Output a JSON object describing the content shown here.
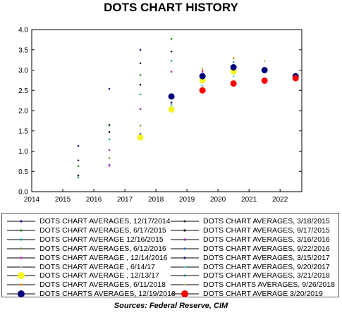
{
  "title": "DOTS CHART HISTORY",
  "source": "Sources:  Federal Reserve, CIM",
  "chart_data": {
    "type": "scatter",
    "title": "DOTS CHART HISTORY",
    "xlabel": "",
    "ylabel": "",
    "xlim": [
      2014,
      2022.7
    ],
    "ylim": [
      0,
      4
    ],
    "x_ticks": [
      "2014",
      "2015",
      "2016",
      "2017",
      "2018",
      "2019",
      "2020",
      "2021",
      "2022"
    ],
    "y_ticks": [
      "0.0",
      "0.5",
      "1.0",
      "1.5",
      "2.0",
      "2.5",
      "3.0",
      "3.5",
      "4.0"
    ],
    "grid": false,
    "legend_position": "bottom",
    "series": [
      {
        "name": "DOTS CHART AVERAGES, 12/17/2014",
        "color": "#1a1a8c",
        "marker": "small",
        "points": [
          [
            2015.5,
            1.13
          ],
          [
            2016.5,
            2.54
          ],
          [
            2017.5,
            3.5
          ]
        ]
      },
      {
        "name": "DOTS CHART AVERAGES, 3/18/2015",
        "color": "#333333",
        "marker": "small",
        "points": [
          [
            2015.5,
            0.77
          ],
          [
            2016.5,
            1.65
          ],
          [
            2017.5,
            3.17
          ]
        ]
      },
      {
        "name": "DOTS CHART AVERAGES, 6/17/2015",
        "color": "#2e8b2e",
        "marker": "small",
        "points": [
          [
            2015.5,
            0.63
          ],
          [
            2016.5,
            1.63
          ],
          [
            2017.5,
            2.88
          ],
          [
            2018.5,
            3.77
          ]
        ]
      },
      {
        "name": "DOTS CHART AVERAGES, 9/17/2015",
        "color": "#000000",
        "marker": "small",
        "points": [
          [
            2015.5,
            0.4
          ],
          [
            2016.5,
            1.47
          ],
          [
            2017.5,
            2.64
          ],
          [
            2018.5,
            3.46
          ]
        ]
      },
      {
        "name": "DOTS CHART AVERAGE 12/16/2015",
        "color": "#20a0a0",
        "marker": "small",
        "points": [
          [
            2015.5,
            0.35
          ],
          [
            2016.5,
            1.29
          ],
          [
            2017.5,
            2.4
          ],
          [
            2018.5,
            3.23
          ]
        ]
      },
      {
        "name": "DOTS CHART AVERAGES, 3/16/2016",
        "color": "#9b309b",
        "marker": "small",
        "points": [
          [
            2016.5,
            1.03
          ],
          [
            2017.5,
            2.04
          ],
          [
            2018.5,
            2.96
          ]
        ]
      },
      {
        "name": "DOTS CHART AVERAGES, 6/12/2016",
        "color": "#8b8b3a",
        "marker": "small",
        "points": [
          [
            2016.5,
            0.83
          ],
          [
            2017.5,
            1.63
          ],
          [
            2018.5,
            2.38
          ]
        ]
      },
      {
        "name": "DOTS CHART AVERAGES, 9/22/2016",
        "color": "#3a6bbb",
        "marker": "small",
        "points": [
          [
            2016.5,
            0.66
          ],
          [
            2017.5,
            1.4
          ],
          [
            2018.5,
            2.2
          ],
          [
            2019.5,
            2.9
          ]
        ]
      },
      {
        "name": "DOTS CHART AVERAGE , 12/14/2016",
        "color": "#d020d0",
        "marker": "small",
        "points": [
          [
            2016.5,
            0.64
          ],
          [
            2017.5,
            1.4
          ],
          [
            2018.5,
            2.16
          ],
          [
            2019.5,
            2.96
          ]
        ]
      },
      {
        "name": "DOTS CHART AVERAGES, 3/15/2017",
        "color": "#1a1a8c",
        "marker": "small",
        "points": [
          [
            2017.5,
            1.42
          ],
          [
            2018.5,
            2.2
          ],
          [
            2019.5,
            3.0
          ]
        ]
      },
      {
        "name": "DOTS CHART AVERAGE , 6/14/17",
        "color": "#b0b0b0",
        "marker": "small",
        "points": [
          [
            2017.5,
            1.4
          ],
          [
            2018.5,
            2.16
          ],
          [
            2019.5,
            2.9
          ]
        ]
      },
      {
        "name": "DOTS CHART AVERAGES, 9/20/2017",
        "color": "#5ad0e0",
        "marker": "small",
        "points": [
          [
            2017.5,
            1.38
          ],
          [
            2018.5,
            2.13
          ],
          [
            2019.5,
            2.62
          ],
          [
            2020.5,
            2.85
          ]
        ]
      },
      {
        "name": "DOTS CHART AVERAGE , 12/13/17",
        "color": "#f5f522",
        "marker": "large",
        "points": [
          [
            2017.5,
            1.34
          ],
          [
            2018.5,
            2.03
          ],
          [
            2019.5,
            2.75
          ],
          [
            2020.5,
            2.97
          ]
        ]
      },
      {
        "name": "DOTS CHART AVERAGES, 3/21/2018",
        "color": "#2e8b8b",
        "marker": "small",
        "points": [
          [
            2018.5,
            2.35
          ],
          [
            2019.5,
            2.9
          ],
          [
            2020.5,
            3.2
          ],
          [
            2021.5,
            3.0
          ]
        ]
      },
      {
        "name": "DOTS CHART AVERAGES, 6/11/2018",
        "color": "#ff8c00",
        "marker": "small",
        "points": [
          [
            2018.5,
            2.38
          ],
          [
            2019.5,
            3.0
          ],
          [
            2020.5,
            3.3
          ],
          [
            2021.5,
            3.0
          ]
        ]
      },
      {
        "name": "DOTS CHARTS AVERAGES, 9/26/2018",
        "color": "#a0d070",
        "marker": "small",
        "points": [
          [
            2018.5,
            2.38
          ],
          [
            2019.5,
            3.05
          ],
          [
            2020.5,
            3.28
          ],
          [
            2021.5,
            3.22
          ]
        ]
      },
      {
        "name": "DOTS CHARTS AVERAGES, 12/19/2018",
        "color": "#00007a",
        "marker": "large",
        "points": [
          [
            2018.5,
            2.35
          ],
          [
            2019.5,
            2.85
          ],
          [
            2020.5,
            3.07
          ],
          [
            2021.5,
            3.0
          ],
          [
            2022.5,
            2.85
          ]
        ]
      },
      {
        "name": "DOTS CHART AVERAGE 3/20/2019",
        "color": "#ff0000",
        "marker": "large",
        "points": [
          [
            2019.5,
            2.5
          ],
          [
            2020.5,
            2.67
          ],
          [
            2021.5,
            2.74
          ],
          [
            2022.5,
            2.8
          ]
        ]
      }
    ]
  }
}
